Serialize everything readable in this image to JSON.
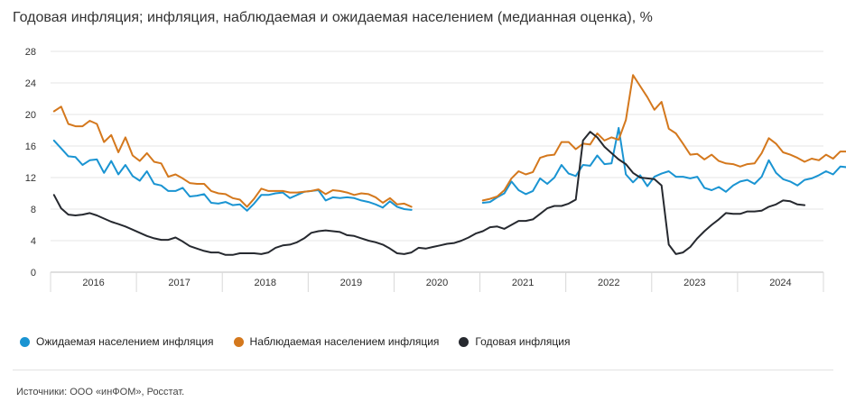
{
  "chart_data": {
    "type": "line",
    "title": "Годовая инфляция; инфляция, наблюдаемая и ожидаемая населением (медианная оценка), %",
    "xlabel": "",
    "ylabel": "",
    "ylim": [
      0,
      28
    ],
    "yticks": [
      0,
      4,
      8,
      12,
      16,
      20,
      24,
      28
    ],
    "grid": true,
    "x_range": [
      2016.0,
      2024.917
    ],
    "years": [
      "2016",
      "2017",
      "2018",
      "2019",
      "2020",
      "2021",
      "2022",
      "2023",
      "2024"
    ],
    "series": [
      {
        "name": "Ожидаемая населением инфляция",
        "color": "#1a94d2",
        "points": [
          [
            2016.0,
            16.7
          ],
          [
            2016.08,
            15.7
          ],
          [
            2016.17,
            14.7
          ],
          [
            2016.25,
            14.6
          ],
          [
            2016.33,
            13.6
          ],
          [
            2016.42,
            14.2
          ],
          [
            2016.5,
            14.3
          ],
          [
            2016.58,
            12.6
          ],
          [
            2016.67,
            14.1
          ],
          [
            2016.75,
            12.4
          ],
          [
            2016.83,
            13.6
          ],
          [
            2016.92,
            12.2
          ],
          [
            2017.0,
            11.6
          ],
          [
            2017.08,
            12.8
          ],
          [
            2017.17,
            11.2
          ],
          [
            2017.25,
            11.0
          ],
          [
            2017.33,
            10.3
          ],
          [
            2017.42,
            10.3
          ],
          [
            2017.5,
            10.7
          ],
          [
            2017.58,
            9.6
          ],
          [
            2017.67,
            9.7
          ],
          [
            2017.75,
            9.9
          ],
          [
            2017.83,
            8.8
          ],
          [
            2017.92,
            8.7
          ],
          [
            2018.0,
            8.9
          ],
          [
            2018.08,
            8.5
          ],
          [
            2018.17,
            8.6
          ],
          [
            2018.25,
            7.8
          ],
          [
            2018.33,
            8.7
          ],
          [
            2018.42,
            9.8
          ],
          [
            2018.5,
            9.8
          ],
          [
            2018.58,
            10.0
          ],
          [
            2018.67,
            10.1
          ],
          [
            2018.75,
            9.4
          ],
          [
            2018.83,
            9.8
          ],
          [
            2018.92,
            10.2
          ],
          [
            2019.0,
            10.3
          ],
          [
            2019.08,
            10.4
          ],
          [
            2019.17,
            9.1
          ],
          [
            2019.25,
            9.5
          ],
          [
            2019.33,
            9.4
          ],
          [
            2019.42,
            9.5
          ],
          [
            2019.5,
            9.4
          ],
          [
            2019.58,
            9.1
          ],
          [
            2019.67,
            8.9
          ],
          [
            2019.75,
            8.6
          ],
          [
            2019.83,
            8.2
          ],
          [
            2019.92,
            9.0
          ],
          [
            2020.0,
            8.3
          ],
          [
            2020.08,
            8.0
          ],
          [
            2020.17,
            7.9
          ],
          null,
          [
            2020.17,
            null
          ],
          [
            2020.17,
            null
          ],
          [
            2020.17,
            null
          ],
          [
            2020.17,
            null
          ],
          [
            2020.17,
            null
          ],
          [
            2020.17,
            null
          ],
          [
            2020.17,
            null
          ],
          [
            2020.17,
            null
          ]
        ]
      },
      {
        "name": "Наблюдаемая населением инфляция",
        "color": "#d4781d",
        "points": []
      },
      {
        "name": "Годовая инфляция",
        "color": "#26292f",
        "points": []
      }
    ],
    "legend_position": "bottom-left"
  },
  "legend": [
    {
      "label": "Ожидаемая населением инфляция",
      "color": "#1a94d2"
    },
    {
      "label": "Наблюдаемая населением инфляция",
      "color": "#d4781d"
    },
    {
      "label": "Годовая инфляция",
      "color": "#26292f"
    }
  ],
  "source": "Источники: ООО «инФОМ», Росстат."
}
